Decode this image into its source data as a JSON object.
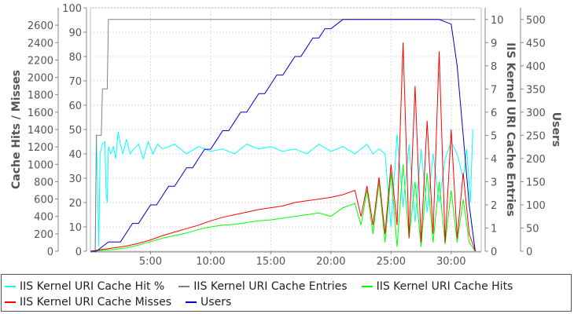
{
  "chart_data": {
    "type": "line",
    "title": "",
    "x_axis": {
      "ticks": [
        "5:00",
        "10:00",
        "15:00",
        "20:00",
        "25:00",
        "30:00"
      ],
      "tick_values": [
        5,
        10,
        15,
        20,
        25,
        30
      ],
      "range": [
        0,
        32.5
      ]
    },
    "y_axes": {
      "left_outer": {
        "label": "Cache Hits / Misses",
        "range": [
          0,
          2800
        ],
        "ticks": [
          "0",
          "200",
          "400",
          "600",
          "800",
          "1000",
          "1200",
          "1400",
          "1600",
          "1800",
          "2000",
          "2200",
          "2400",
          "2600"
        ],
        "tick_values": [
          0,
          200,
          400,
          600,
          800,
          1000,
          1200,
          1400,
          1600,
          1800,
          2000,
          2200,
          2400,
          2600
        ]
      },
      "left_inner": {
        "label": "",
        "range": [
          0,
          100
        ],
        "ticks": [
          "0",
          "10",
          "20",
          "30",
          "40",
          "50",
          "60",
          "70",
          "80",
          "90",
          "100"
        ],
        "tick_values": [
          0,
          10,
          20,
          30,
          40,
          50,
          60,
          70,
          80,
          90,
          100
        ]
      },
      "right_inner": {
        "label": "IIS Kernel URI Cache Entries",
        "range": [
          0,
          10.5
        ],
        "ticks": [
          "0",
          "1",
          "2",
          "3",
          "4",
          "5",
          "6",
          "7",
          "8",
          "9",
          "10"
        ],
        "tick_values": [
          0,
          1,
          2,
          3,
          4,
          5,
          6,
          7,
          8,
          9,
          10
        ]
      },
      "right_outer": {
        "label": "Users",
        "range": [
          0,
          525
        ],
        "ticks": [
          "0",
          "50",
          "100",
          "150",
          "200",
          "250",
          "300",
          "350",
          "400",
          "450",
          "500"
        ],
        "tick_values": [
          0,
          50,
          100,
          150,
          200,
          250,
          300,
          350,
          400,
          450,
          500
        ]
      }
    },
    "grid": true,
    "legend": {
      "placement": "bottom"
    },
    "series": [
      {
        "name": "IIS Kernel URI Cache Hit %",
        "axis": "left_inner",
        "color": "#00ffff",
        "x": [
          0,
          0.4,
          0.5,
          0.7,
          0.8,
          1.0,
          1.2,
          1.3,
          1.4,
          1.5,
          1.7,
          1.9,
          2.1,
          2.3,
          2.5,
          2.7,
          3.0,
          3.3,
          3.6,
          4.0,
          4.4,
          4.8,
          5.2,
          5.6,
          6.0,
          7.0,
          8.0,
          9.0,
          10.0,
          11.0,
          12.0,
          13.0,
          14.0,
          15.0,
          16.0,
          17.0,
          18.0,
          19.0,
          20.0,
          21.0,
          22.0,
          22.5,
          23.0,
          23.5,
          24.0,
          24.5,
          25.0,
          25.5,
          26.0,
          26.5,
          27.0,
          27.5,
          28.0,
          28.5,
          29.0,
          29.5,
          30.0,
          30.5,
          31.0,
          31.3,
          31.6,
          31.8
        ],
        "y": [
          0,
          0,
          48,
          2,
          40,
          44,
          45,
          24,
          20,
          43,
          40,
          43,
          38,
          49,
          44,
          40,
          46,
          40,
          42,
          44,
          38,
          45,
          40,
          44,
          42,
          44,
          40,
          43,
          41,
          42,
          40,
          44,
          42,
          43,
          41,
          42,
          40,
          44,
          41,
          43,
          40,
          42,
          44,
          40,
          42,
          40,
          10,
          48,
          18,
          44,
          12,
          42,
          16,
          40,
          20,
          38,
          45,
          40,
          30,
          42,
          20,
          50
        ]
      },
      {
        "name": "IIS Kernel URI Cache Entries",
        "axis": "right_inner",
        "color": "#808080",
        "x": [
          0,
          0.4,
          0.5,
          0.9,
          1.0,
          1.4,
          1.5,
          1.7,
          1.8,
          32.0
        ],
        "y": [
          0,
          0,
          5,
          5,
          7,
          7,
          10,
          10,
          10,
          10
        ]
      },
      {
        "name": "IIS Kernel URI Cache Hits",
        "axis": "left_outer",
        "color": "#00ff00",
        "x": [
          0,
          1,
          2,
          3,
          4,
          5,
          6,
          7,
          8,
          9,
          10,
          11,
          12,
          13,
          14,
          15,
          16,
          17,
          18,
          19,
          20,
          21,
          22,
          22.5,
          23,
          23.5,
          24,
          24.5,
          25,
          25.5,
          26,
          26.5,
          27,
          27.5,
          28,
          28.5,
          29,
          29.5,
          30,
          30.5,
          31,
          31.5,
          32
        ],
        "y": [
          0,
          10,
          20,
          40,
          70,
          110,
          150,
          180,
          210,
          250,
          280,
          300,
          310,
          330,
          350,
          360,
          380,
          400,
          420,
          440,
          400,
          500,
          550,
          300,
          700,
          200,
          800,
          100,
          900,
          50,
          1000,
          150,
          800,
          50,
          900,
          100,
          800,
          80,
          700,
          100,
          600,
          100,
          0
        ]
      },
      {
        "name": "IIS Kernel URI Cache Misses",
        "axis": "left_outer",
        "color": "#ff0000",
        "x": [
          0,
          1,
          2,
          3,
          4,
          5,
          6,
          7,
          8,
          9,
          10,
          11,
          12,
          13,
          14,
          15,
          16,
          17,
          18,
          19,
          20,
          21,
          22,
          22.5,
          23,
          23.5,
          24,
          24.5,
          25,
          25.5,
          26,
          26.5,
          27,
          27.5,
          28,
          28.5,
          29,
          29.5,
          30,
          30.5,
          31,
          31.5,
          32
        ],
        "y": [
          0,
          20,
          40,
          60,
          90,
          130,
          180,
          220,
          260,
          300,
          350,
          390,
          420,
          450,
          480,
          500,
          520,
          560,
          580,
          600,
          620,
          650,
          700,
          400,
          750,
          300,
          850,
          200,
          1000,
          300,
          2400,
          150,
          1900,
          100,
          1500,
          200,
          2300,
          100,
          1400,
          150,
          900,
          200,
          0
        ]
      },
      {
        "name": "Users",
        "axis": "right_outer",
        "color": "#0000cc",
        "x": [
          0,
          0.5,
          1,
          1.5,
          2.5,
          3,
          3.5,
          4,
          4.5,
          5,
          5.5,
          6,
          6.5,
          7,
          7.5,
          8,
          8.5,
          9,
          9.5,
          10,
          10.5,
          11,
          11.5,
          12,
          12.5,
          13,
          13.5,
          14,
          14.5,
          15,
          15.5,
          16,
          16.5,
          17,
          17.5,
          18,
          18.5,
          19,
          19.5,
          20,
          20.5,
          21,
          21.5,
          22,
          22.5,
          23,
          23.5,
          24,
          24.5,
          25,
          25.5,
          26,
          27,
          28,
          29,
          30,
          30.5,
          31,
          31.5,
          32
        ],
        "y": [
          0,
          0,
          10,
          20,
          20,
          40,
          60,
          60,
          80,
          100,
          100,
          120,
          140,
          140,
          160,
          180,
          180,
          200,
          220,
          220,
          240,
          260,
          260,
          280,
          300,
          300,
          320,
          340,
          340,
          360,
          380,
          380,
          400,
          420,
          420,
          440,
          460,
          460,
          480,
          480,
          490,
          500,
          500,
          500,
          500,
          500,
          500,
          500,
          500,
          500,
          500,
          500,
          500,
          500,
          500,
          490,
          400,
          250,
          100,
          0
        ]
      }
    ]
  }
}
